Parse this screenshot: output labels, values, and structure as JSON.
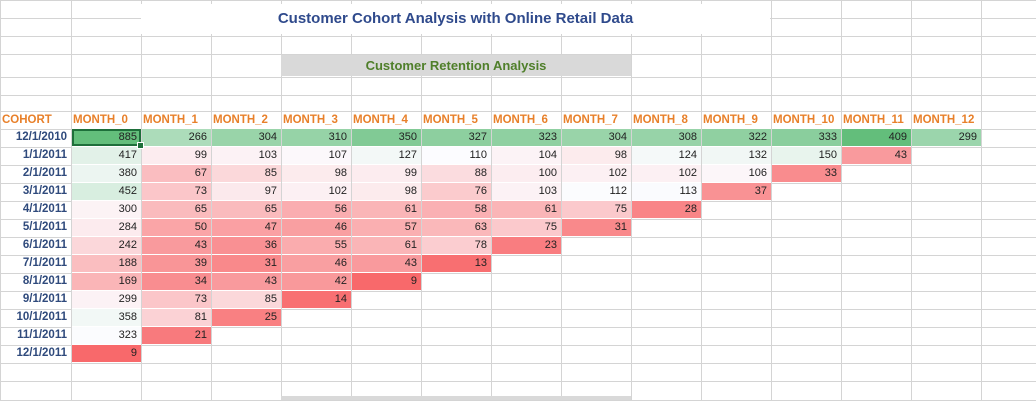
{
  "title": "Customer Cohort Analysis with Online Retail Data",
  "subtitle": "Customer Retention Analysis",
  "header_row": [
    "COHORT",
    "MONTH_0",
    "MONTH_1",
    "MONTH_2",
    "MONTH_3",
    "MONTH_4",
    "MONTH_5",
    "MONTH_6",
    "MONTH_7",
    "MONTH_8",
    "MONTH_9",
    "MONTH_10",
    "MONTH_11",
    "MONTH_12"
  ],
  "rows": [
    {
      "cohort": "12/1/2010",
      "values": [
        885,
        266,
        304,
        310,
        350,
        327,
        323,
        304,
        308,
        322,
        333,
        409,
        299
      ]
    },
    {
      "cohort": "1/1/2011",
      "values": [
        417,
        99,
        103,
        107,
        127,
        110,
        104,
        98,
        124,
        132,
        150,
        43
      ]
    },
    {
      "cohort": "2/1/2011",
      "values": [
        380,
        67,
        85,
        98,
        99,
        88,
        100,
        102,
        102,
        106,
        33
      ]
    },
    {
      "cohort": "3/1/2011",
      "values": [
        452,
        73,
        97,
        102,
        98,
        76,
        103,
        112,
        113,
        37
      ]
    },
    {
      "cohort": "4/1/2011",
      "values": [
        300,
        65,
        65,
        56,
        61,
        58,
        61,
        75,
        28
      ]
    },
    {
      "cohort": "5/1/2011",
      "values": [
        284,
        50,
        47,
        46,
        57,
        63,
        75,
        31
      ]
    },
    {
      "cohort": "6/1/2011",
      "values": [
        242,
        43,
        36,
        55,
        61,
        78,
        23
      ]
    },
    {
      "cohort": "7/1/2011",
      "values": [
        188,
        39,
        31,
        46,
        43,
        13
      ]
    },
    {
      "cohort": "8/1/2011",
      "values": [
        169,
        34,
        43,
        42,
        9
      ]
    },
    {
      "cohort": "9/1/2011",
      "values": [
        299,
        73,
        85,
        14
      ]
    },
    {
      "cohort": "10/1/2011",
      "values": [
        358,
        81,
        25
      ]
    },
    {
      "cohort": "11/1/2011",
      "values": [
        323,
        21
      ]
    },
    {
      "cohort": "12/1/2011",
      "values": [
        9
      ]
    }
  ],
  "colors": {
    "low": "#f8696b",
    "mid": "#fcfcff",
    "high": "#63be7b",
    "header_text": "#e8802a",
    "cohort_text": "#2f4a7c",
    "title_text": "#2f4a8c",
    "subtitle_text": "#4f7f2a"
  },
  "selected_cell": "MONTH_0 of 12/1/2010"
}
